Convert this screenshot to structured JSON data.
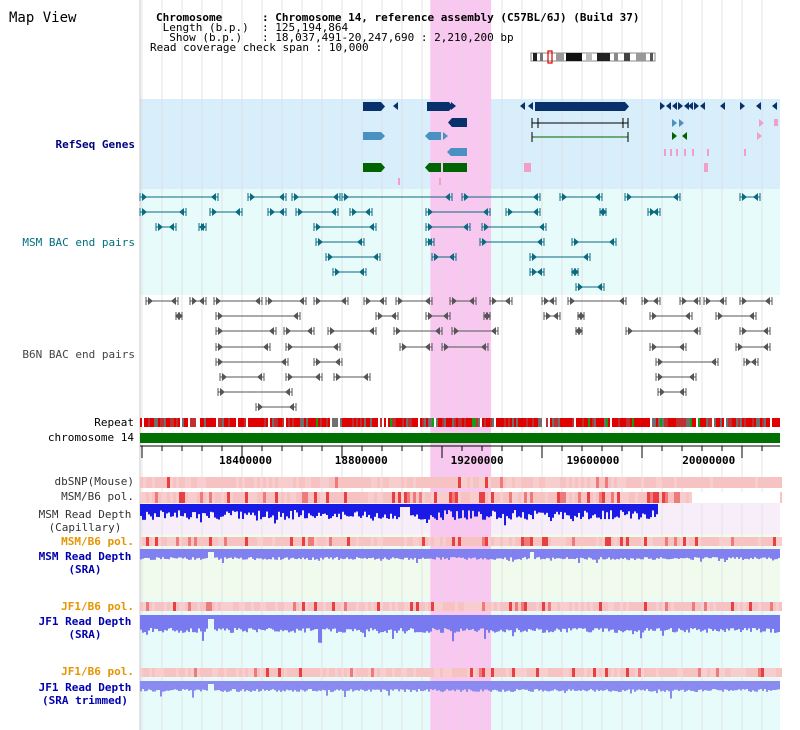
{
  "page": {
    "title": "Map View"
  },
  "header": {
    "rows": [
      {
        "label": "Chromosome     ",
        "sep": ":",
        "value": "Chromosome 14, reference assembly (C57BL/6J) (Build 37)"
      },
      {
        "label": " Length (b.p.) ",
        "sep": ":",
        "value": "125,194,864"
      },
      {
        "label": "  Show (b.p.)  ",
        "sep": ":",
        "value": "18,037,491-20,247,690 : 2,210,200 bp"
      },
      {
        "label": "Read coverage check span",
        "sep": ":",
        "value": "10,000"
      }
    ]
  },
  "tracks": {
    "refseq": {
      "label": "RefSeq Genes",
      "color": "#000080"
    },
    "msm_bac": {
      "label": "MSM BAC end pairs",
      "color": "#006f80"
    },
    "b6n_bac": {
      "label": "B6N BAC end pairs",
      "color": "#444444"
    },
    "repeat": {
      "label": "Repeat"
    },
    "chromosome": {
      "label": "chromosome 14",
      "color": "#007000"
    },
    "dbsnp": {
      "label": "dbSNP(Mouse)"
    },
    "msm_b6_pol": {
      "label": "MSM/B6 pol."
    },
    "msm_depth_cap_1": {
      "label": "MSM Read Depth"
    },
    "msm_depth_cap_2": {
      "label": "(Capillary)"
    },
    "msm_b6_pol_2": {
      "label": "MSM/B6 pol.",
      "color": "#e69500"
    },
    "msm_depth_sra_1": {
      "label": "MSM Read Depth",
      "color": "#0000b0"
    },
    "msm_depth_sra_2": {
      "label": "(SRA)",
      "color": "#0000b0"
    },
    "jf1_pol_1": {
      "label": "JF1/B6 pol.",
      "color": "#e69500"
    },
    "jf1_depth_1": {
      "label": "JF1 Read Depth",
      "color": "#0000b0"
    },
    "jf1_depth_2": {
      "label": "(SRA)",
      "color": "#0000b0"
    },
    "jf1_pol_2": {
      "label": "JF1/B6 pol.",
      "color": "#e69500"
    },
    "jf1_trim_1": {
      "label": "JF1 Read Depth",
      "color": "#0000b0"
    },
    "jf1_trim_2": {
      "label": "(SRA trimmed)",
      "color": "#0000b0"
    }
  },
  "ruler": {
    "range": [
      18037491,
      20247690
    ],
    "ticks": [
      "18400000",
      "18800000",
      "19200000",
      "19600000",
      "20000000"
    ]
  },
  "highlight": {
    "start": 19040000,
    "end": 19250000,
    "color": "#f8c8f0"
  },
  "colors": {
    "refseq_navy": "#08306b",
    "refseq_blue": "#4a90c0",
    "refseq_green": "#006400",
    "refseq_pink": "#f0a0c8",
    "repeat_red": "#e00000",
    "msm_depth": "#1a1ae6",
    "sra_depth": "#8080f0",
    "pol_light": "#f4b8b8",
    "pol_strong": "#e84040"
  }
}
